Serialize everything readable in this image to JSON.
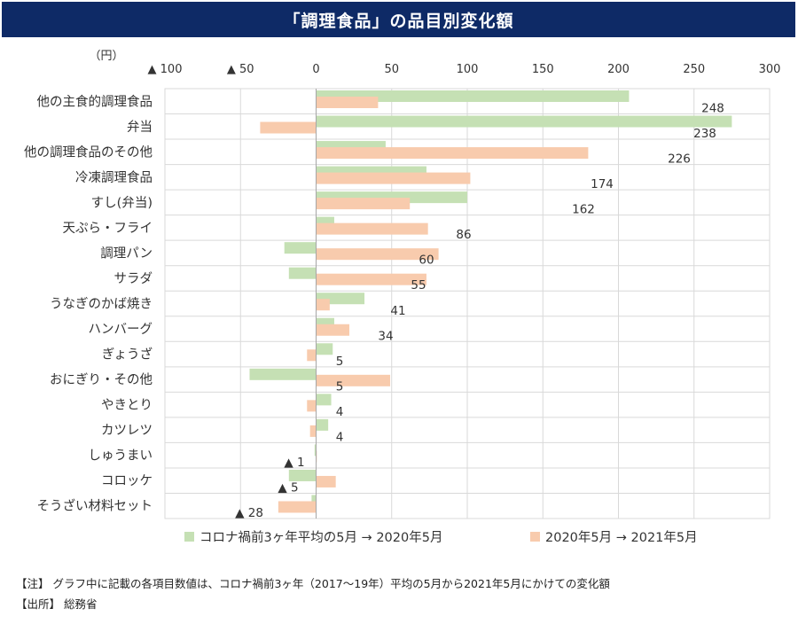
{
  "page_title": "「調理食品」の品目別変化額",
  "chart_data": {
    "type": "bar",
    "orientation": "horizontal",
    "title": "「調理食品」の品目別変化額",
    "unit_label": "（円）",
    "xlim": [
      -100,
      300
    ],
    "x_ticks": [
      {
        "value": -100,
        "label": "▲ 100"
      },
      {
        "value": -50,
        "label": "▲ 50"
      },
      {
        "value": 0,
        "label": "0"
      },
      {
        "value": 50,
        "label": "50"
      },
      {
        "value": 100,
        "label": "100"
      },
      {
        "value": 150,
        "label": "150"
      },
      {
        "value": 200,
        "label": "200"
      },
      {
        "value": 250,
        "label": "250"
      },
      {
        "value": 300,
        "label": "300"
      }
    ],
    "categories": [
      "他の主食的調理食品",
      "弁当",
      "他の調理食品のその他",
      "冷凍調理食品",
      "すし(弁当)",
      "天ぷら・フライ",
      "調理パン",
      "サラダ",
      "うなぎのかば焼き",
      "ハンバーグ",
      "ぎょうざ",
      "おにぎり・その他",
      "やきとり",
      "カツレツ",
      "しゅうまい",
      "コロッケ",
      "そうざい材料セット"
    ],
    "series": [
      {
        "name": "コロナ禍前3ヶ年平均の5月 → 2020年5月",
        "color": "#c5e0b4",
        "values": [
          207,
          275,
          46,
          73,
          100,
          12,
          -21,
          -18,
          32,
          12,
          11,
          -44,
          10,
          8,
          -1,
          -18,
          -3
        ]
      },
      {
        "name": "2020年5月 → 2021年5月",
        "color": "#f8cbad",
        "values": [
          41,
          -37,
          180,
          102,
          62,
          74,
          81,
          73,
          9,
          22,
          -6,
          49,
          -6,
          -4,
          0,
          13,
          -25
        ]
      }
    ],
    "data_labels": [
      "248",
      "238",
      "226",
      "174",
      "162",
      "86",
      "60",
      "55",
      "41",
      "34",
      "5",
      "5",
      "4",
      "4",
      "▲ 1",
      "▲ 5",
      "▲ 28"
    ],
    "legend_position": "bottom",
    "grid": true
  },
  "notes": {
    "note": "【注】 グラフ中に記載の各項目数値は、コロナ禍前3ヶ年（2017～19年）平均の5月から2021年5月にかけての変化額",
    "source": "【出所】 総務省"
  }
}
